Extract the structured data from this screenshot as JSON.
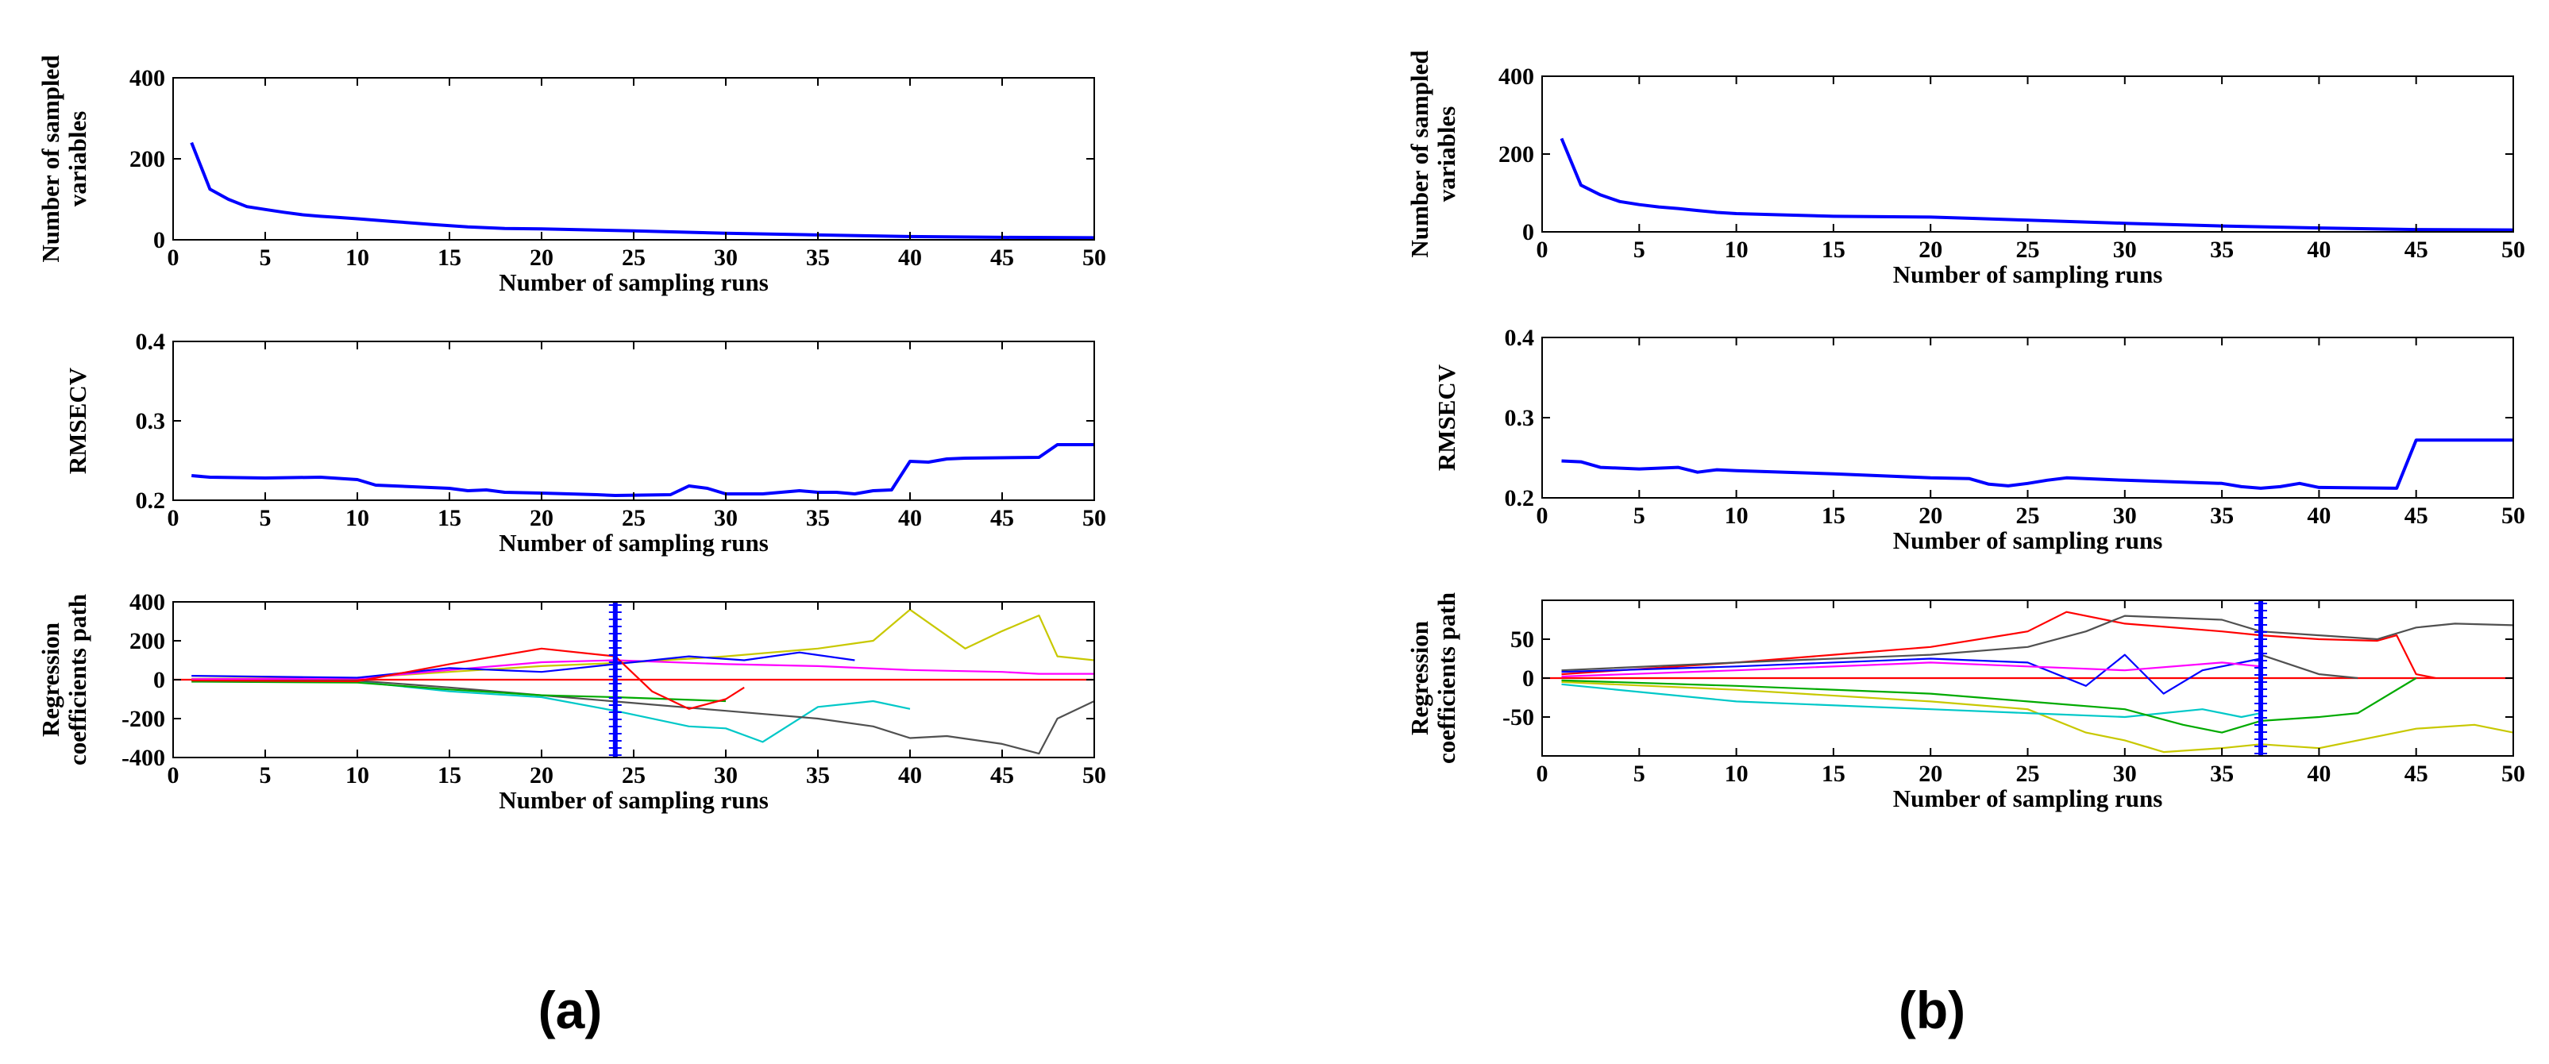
{
  "panels": [
    {
      "label": "(a)"
    },
    {
      "label": "(b)"
    }
  ],
  "chart_data": [
    {
      "type": "line",
      "panel": "(a)",
      "subplot": "top",
      "ylabel": [
        "Number of sampled",
        "variables"
      ],
      "xlabel": "Number of sampling runs",
      "xlim": [
        0,
        50
      ],
      "ylim": [
        0,
        400
      ],
      "xticks": [
        "0",
        "5",
        "10",
        "15",
        "20",
        "25",
        "30",
        "35",
        "40",
        "45",
        "50"
      ],
      "yticks": [
        "0",
        "200",
        "400"
      ],
      "series": [
        {
          "name": "sampled variables",
          "color": "#0000ff",
          "x": [
            1,
            2,
            3,
            4,
            5,
            6,
            7,
            8,
            9,
            10,
            12,
            14,
            16,
            18,
            20,
            25,
            30,
            35,
            40,
            45,
            50
          ],
          "y": [
            240,
            125,
            100,
            82,
            75,
            68,
            62,
            58,
            55,
            52,
            45,
            38,
            32,
            28,
            27,
            22,
            16,
            12,
            8,
            6,
            5
          ]
        }
      ]
    },
    {
      "type": "line",
      "panel": "(a)",
      "subplot": "middle",
      "ylabel": [
        "RMSECV"
      ],
      "xlabel": "Number of sampling runs",
      "xlim": [
        0,
        50
      ],
      "ylim": [
        0.2,
        0.4
      ],
      "xticks": [
        "0",
        "5",
        "10",
        "15",
        "20",
        "25",
        "30",
        "35",
        "40",
        "45",
        "50"
      ],
      "yticks": [
        "0.2",
        "0.3",
        "0.4"
      ],
      "series": [
        {
          "name": "RMSECV",
          "color": "#0000ff",
          "x": [
            1,
            2,
            5,
            8,
            10,
            11,
            13,
            15,
            16,
            17,
            18,
            20,
            23,
            24,
            27,
            28,
            29,
            30,
            32,
            33,
            34,
            35,
            36,
            37,
            38,
            39,
            40,
            41,
            42,
            43,
            47,
            48,
            50
          ],
          "y": [
            0.231,
            0.229,
            0.228,
            0.229,
            0.226,
            0.219,
            0.217,
            0.215,
            0.212,
            0.213,
            0.21,
            0.209,
            0.207,
            0.206,
            0.207,
            0.218,
            0.215,
            0.208,
            0.208,
            0.21,
            0.212,
            0.21,
            0.21,
            0.208,
            0.212,
            0.213,
            0.249,
            0.248,
            0.252,
            0.253,
            0.254,
            0.27,
            0.27
          ]
        }
      ]
    },
    {
      "type": "line",
      "panel": "(a)",
      "subplot": "bottom",
      "ylabel": [
        "Regression",
        "coefficients path"
      ],
      "xlabel": "Number of sampling runs",
      "xlim": [
        0,
        50
      ],
      "ylim": [
        -400,
        400
      ],
      "xticks": [
        "0",
        "5",
        "10",
        "15",
        "20",
        "25",
        "30",
        "35",
        "40",
        "45",
        "50"
      ],
      "yticks": [
        "400",
        "200",
        "0",
        "-200",
        "-400"
      ],
      "marker_x": 24,
      "series": [
        {
          "color": "#ff0000",
          "x": [
            0,
            50
          ],
          "y": [
            0,
            0
          ]
        },
        {
          "color": "#c8c800",
          "x": [
            1,
            10,
            15,
            20,
            25,
            30,
            35,
            38,
            40,
            43,
            45,
            47,
            48,
            50
          ],
          "y": [
            5,
            10,
            40,
            70,
            90,
            120,
            160,
            200,
            360,
            160,
            250,
            330,
            120,
            100
          ]
        },
        {
          "color": "#00c8c8",
          "x": [
            1,
            10,
            15,
            20,
            24,
            28,
            30,
            32,
            35,
            38,
            40
          ],
          "y": [
            -5,
            -10,
            -60,
            -90,
            -160,
            -240,
            -250,
            -320,
            -140,
            -110,
            -150
          ]
        },
        {
          "color": "#505050",
          "x": [
            1,
            10,
            15,
            20,
            25,
            30,
            35,
            38,
            40,
            42,
            45,
            47,
            48,
            50
          ],
          "y": [
            0,
            -5,
            -40,
            -80,
            -120,
            -160,
            -200,
            -240,
            -300,
            -290,
            -330,
            -380,
            -200,
            -110
          ]
        },
        {
          "color": "#ff00ff",
          "x": [
            1,
            10,
            15,
            20,
            24,
            30,
            35,
            40,
            45,
            47,
            50
          ],
          "y": [
            3,
            6,
            50,
            90,
            100,
            80,
            70,
            50,
            40,
            30,
            30
          ]
        },
        {
          "color": "#0000ff",
          "x": [
            1,
            10,
            15,
            20,
            24,
            28,
            31,
            34,
            37
          ],
          "y": [
            20,
            10,
            60,
            40,
            80,
            120,
            100,
            140,
            100
          ]
        },
        {
          "color": "#00aa00",
          "x": [
            1,
            10,
            15,
            20,
            24,
            30
          ],
          "y": [
            -10,
            -15,
            -50,
            -80,
            -90,
            -110
          ]
        },
        {
          "color": "#ff0000",
          "x": [
            1,
            10,
            15,
            20,
            24,
            26,
            28,
            30,
            31
          ],
          "y": [
            -4,
            -8,
            80,
            160,
            120,
            -60,
            -150,
            -100,
            -40
          ]
        }
      ]
    },
    {
      "type": "line",
      "panel": "(b)",
      "subplot": "top",
      "ylabel": [
        "Number of sampled",
        "variables"
      ],
      "xlabel": "Number of sampling runs",
      "xlim": [
        0,
        50
      ],
      "ylim": [
        0,
        400
      ],
      "xticks": [
        "0",
        "5",
        "10",
        "15",
        "20",
        "25",
        "30",
        "35",
        "40",
        "45",
        "50"
      ],
      "yticks": [
        "0",
        "200",
        "400"
      ],
      "series": [
        {
          "name": "sampled variables",
          "color": "#0000ff",
          "x": [
            1,
            2,
            3,
            4,
            5,
            6,
            7,
            8,
            9,
            10,
            12,
            15,
            20,
            22,
            25,
            30,
            35,
            40,
            45,
            50
          ],
          "y": [
            240,
            120,
            95,
            78,
            70,
            64,
            60,
            55,
            50,
            47,
            44,
            40,
            38,
            35,
            30,
            22,
            15,
            10,
            6,
            5
          ]
        }
      ]
    },
    {
      "type": "line",
      "panel": "(b)",
      "subplot": "middle",
      "ylabel": [
        "RMSECV"
      ],
      "xlabel": "Number of sampling runs",
      "xlim": [
        0,
        50
      ],
      "ylim": [
        0.2,
        0.4
      ],
      "xticks": [
        "0",
        "5",
        "10",
        "15",
        "20",
        "25",
        "30",
        "35",
        "40",
        "45",
        "50"
      ],
      "yticks": [
        "0.2",
        "0.3",
        "0.4"
      ],
      "series": [
        {
          "name": "RMSECV",
          "color": "#0000ff",
          "x": [
            1,
            2,
            3,
            5,
            7,
            8,
            9,
            10,
            15,
            18,
            20,
            22,
            23,
            24,
            25,
            26,
            27,
            30,
            35,
            36,
            37,
            38,
            39,
            40,
            44,
            45,
            50
          ],
          "y": [
            0.246,
            0.245,
            0.238,
            0.236,
            0.238,
            0.232,
            0.235,
            0.234,
            0.23,
            0.227,
            0.225,
            0.224,
            0.217,
            0.215,
            0.218,
            0.222,
            0.225,
            0.222,
            0.218,
            0.214,
            0.212,
            0.214,
            0.218,
            0.213,
            0.212,
            0.272,
            0.272
          ]
        }
      ]
    },
    {
      "type": "line",
      "panel": "(b)",
      "subplot": "bottom",
      "ylabel": [
        "Regression",
        "coefficients path"
      ],
      "xlabel": "Number of sampling runs",
      "xlim": [
        0,
        50
      ],
      "ylim": [
        -100,
        100
      ],
      "xticks": [
        "0",
        "5",
        "10",
        "15",
        "20",
        "25",
        "30",
        "35",
        "40",
        "45",
        "50"
      ],
      "yticks": [
        "50",
        "0",
        "-50"
      ],
      "marker_x": 37,
      "series": [
        {
          "color": "#ff0000",
          "x": [
            0,
            50
          ],
          "y": [
            0,
            0
          ]
        },
        {
          "color": "#ff0000",
          "x": [
            1,
            10,
            15,
            20,
            25,
            27,
            30,
            35,
            37,
            40,
            43,
            44,
            45,
            46
          ],
          "y": [
            5,
            20,
            30,
            40,
            60,
            85,
            70,
            60,
            55,
            50,
            48,
            55,
            5,
            0
          ]
        },
        {
          "color": "#505050",
          "x": [
            1,
            10,
            20,
            25,
            28,
            30,
            35,
            37,
            40,
            43,
            45,
            47,
            50
          ],
          "y": [
            10,
            20,
            30,
            40,
            60,
            80,
            75,
            60,
            55,
            50,
            65,
            70,
            68
          ]
        },
        {
          "color": "#c8c800",
          "x": [
            1,
            10,
            20,
            25,
            28,
            30,
            32,
            35,
            37,
            40,
            45,
            48,
            50
          ],
          "y": [
            -5,
            -15,
            -30,
            -40,
            -70,
            -80,
            -95,
            -90,
            -85,
            -90,
            -65,
            -60,
            -70
          ]
        },
        {
          "color": "#00c8c8",
          "x": [
            1,
            10,
            20,
            25,
            30,
            34,
            36,
            37
          ],
          "y": [
            -8,
            -30,
            -40,
            -45,
            -50,
            -40,
            -50,
            -45
          ]
        },
        {
          "color": "#00aa00",
          "x": [
            1,
            10,
            20,
            25,
            30,
            33,
            35,
            37,
            40,
            42,
            45
          ],
          "y": [
            -3,
            -10,
            -20,
            -30,
            -40,
            -60,
            -70,
            -55,
            -50,
            -45,
            0
          ]
        },
        {
          "color": "#0000ff",
          "x": [
            1,
            10,
            20,
            25,
            28,
            30,
            32,
            34,
            37
          ],
          "y": [
            8,
            15,
            25,
            20,
            -10,
            30,
            -20,
            10,
            25
          ]
        },
        {
          "color": "#ff00ff",
          "x": [
            1,
            10,
            20,
            25,
            30,
            35,
            37
          ],
          "y": [
            2,
            10,
            20,
            15,
            10,
            20,
            15
          ]
        },
        {
          "color": "#505050",
          "x": [
            37,
            40,
            42
          ],
          "y": [
            30,
            5,
            0
          ]
        }
      ]
    }
  ]
}
